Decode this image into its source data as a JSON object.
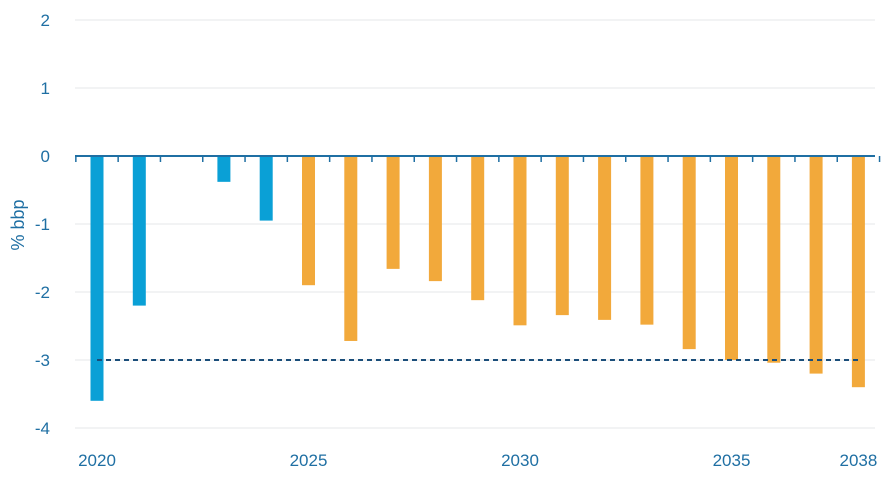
{
  "chart_data": {
    "type": "bar",
    "title": "",
    "xlabel": "",
    "ylabel": "% bbp",
    "ylim": [
      -4,
      2
    ],
    "yticks": [
      2,
      1,
      0,
      -1,
      -2,
      -3,
      -4
    ],
    "xticks": [
      2020,
      2025,
      2030,
      2035,
      2038
    ],
    "grid": true,
    "legend": "none",
    "reference_line": {
      "value": -3,
      "style": "dashed",
      "from": 2020,
      "to": 2038
    },
    "colors": {
      "actual": "#0aa0d6",
      "projection": "#f2a93b",
      "axis": "#1f6fa3"
    },
    "series": [
      {
        "name": "",
        "color": "#0aa0d6",
        "data": [
          {
            "x": 2020,
            "y": -3.6
          },
          {
            "x": 2021,
            "y": -2.2
          },
          {
            "x": 2022,
            "y": 0
          },
          {
            "x": 2023,
            "y": -0.38
          },
          {
            "x": 2024,
            "y": -0.95
          }
        ]
      },
      {
        "name": "",
        "color": "#f2a93b",
        "data": [
          {
            "x": 2025,
            "y": -1.9
          },
          {
            "x": 2026,
            "y": -2.72
          },
          {
            "x": 2027,
            "y": -1.66
          },
          {
            "x": 2028,
            "y": -1.84
          },
          {
            "x": 2029,
            "y": -2.12
          },
          {
            "x": 2030,
            "y": -2.49
          },
          {
            "x": 2031,
            "y": -2.34
          },
          {
            "x": 2032,
            "y": -2.41
          },
          {
            "x": 2033,
            "y": -2.48
          },
          {
            "x": 2034,
            "y": -2.84
          },
          {
            "x": 2035,
            "y": -3.0
          },
          {
            "x": 2036,
            "y": -3.04
          },
          {
            "x": 2037,
            "y": -3.2
          },
          {
            "x": 2038,
            "y": -3.4
          }
        ]
      }
    ]
  }
}
